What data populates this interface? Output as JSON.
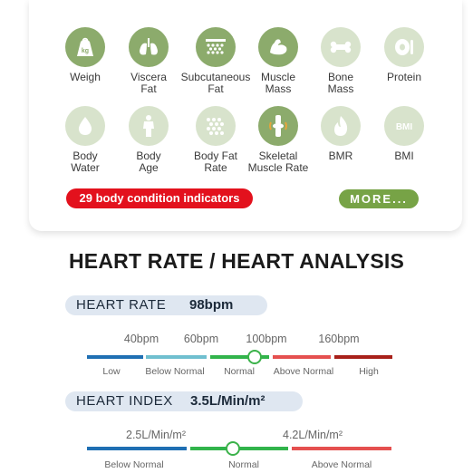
{
  "indicators": [
    {
      "icon": "scale-weight-icon",
      "label": "Weigh"
    },
    {
      "icon": "lungs-icon",
      "label": "Viscera\nFat"
    },
    {
      "icon": "fat-cells-icon",
      "label": "Subcutaneous\nFat"
    },
    {
      "icon": "muscle-arm-icon",
      "label": "Muscle\nMass"
    },
    {
      "icon": "bone-icon",
      "label": "Bone\nMass"
    },
    {
      "icon": "protein-icon",
      "label": "Protein"
    },
    {
      "icon": "water-drop-icon",
      "label": "Body\nWater"
    },
    {
      "icon": "body-figure-icon",
      "label": "Body\nAge"
    },
    {
      "icon": "fat-dots-icon",
      "label": "Body Fat\nRate"
    },
    {
      "icon": "knee-joint-icon",
      "label": "Skeletal\nMuscle Rate"
    },
    {
      "icon": "flame-icon",
      "label": "BMR"
    },
    {
      "icon": "bmi-icon",
      "label": "BMI"
    }
  ],
  "indicators_badge": "29 body condition indicators",
  "more_button": "MORE...",
  "heading": "HEART RATE / HEART ANALYSIS",
  "heart_rate": {
    "title": "HEART RATE",
    "value": "98bpm",
    "ticks": [
      "40bpm",
      "60bpm",
      "100bpm",
      "160bpm"
    ],
    "zones": [
      "Low",
      "Below Normal",
      "Normal",
      "Above Normal",
      "High"
    ],
    "zone_colors": [
      "#1f6fb3",
      "#6fbfcf",
      "#31b44b",
      "#e5504f",
      "#a8201a"
    ],
    "marker_zone": "Normal"
  },
  "heart_index": {
    "title": "HEART INDEX",
    "value": "3.5L/Min/m²",
    "ticks": [
      "2.5L/Min/m²",
      "4.2L/Min/m²"
    ],
    "zones": [
      "Below Normal",
      "Normal",
      "Above Normal"
    ],
    "zone_colors": [
      "#1f6fb3",
      "#31b44b",
      "#e5504f"
    ],
    "marker_zone": "Normal"
  }
}
